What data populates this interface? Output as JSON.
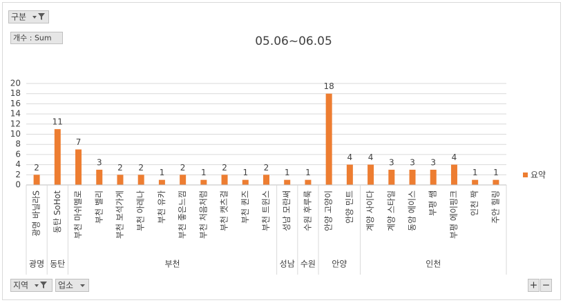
{
  "chart_data": {
    "type": "bar",
    "title": "05.06~06.05",
    "categories": [
      "광명 바닐라S",
      "동탄 SoHot",
      "부천 마쉬멜로",
      "부천 벨리",
      "부천 보석가게",
      "부천 아레나",
      "부천 유카",
      "부천 좋은느낌",
      "부천 처음처럼",
      "부천 캣츠걸",
      "부천 퀸즈",
      "부천 트윈스",
      "성남 모란써",
      "수원 후루룩",
      "안양 고양이",
      "안양 민트",
      "계양 사이다",
      "계양 스타일",
      "동암 에이스",
      "부평 쌤",
      "부평 에이핑크",
      "인천 짝",
      "주안 힐링"
    ],
    "category_groups": [
      "광명",
      "동탄",
      "부천",
      "부천",
      "부천",
      "부천",
      "부천",
      "부천",
      "부천",
      "부천",
      "부천",
      "부천",
      "성남",
      "수원",
      "안양",
      "안양",
      "인천",
      "인천",
      "인천",
      "인천",
      "인천",
      "인천",
      "인천"
    ],
    "series": [
      {
        "name": "요약",
        "color": "#ed7d31",
        "values": [
          2,
          11,
          7,
          3,
          2,
          2,
          1,
          2,
          1,
          2,
          1,
          2,
          1,
          1,
          18,
          4,
          4,
          3,
          3,
          3,
          4,
          1,
          1
        ]
      }
    ],
    "ylim": [
      0,
      20
    ],
    "yticks": [
      0,
      2,
      4,
      6,
      8,
      10,
      12,
      14,
      16,
      18,
      20
    ],
    "grid": true,
    "legend": "right"
  },
  "pivot_buttons": {
    "filter": "구분",
    "value_field": "개수 : Sum",
    "axis_fields": [
      "지역",
      "업소"
    ],
    "zoom": [
      "+",
      "−"
    ]
  }
}
